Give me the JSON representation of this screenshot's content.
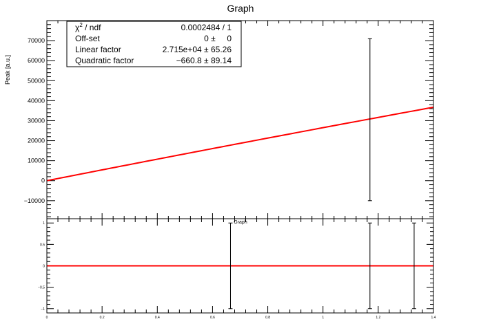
{
  "colors": {
    "fit": "#ff0000",
    "axes": "#000000",
    "background": "#ffffff"
  },
  "main": {
    "title": "Graph",
    "ylabel": "Peak [a.u.]",
    "xlim": [
      0,
      1.4
    ],
    "ylim": [
      -19000,
      80000
    ],
    "y_ticks": [
      {
        "value": -10000,
        "label": "−10000"
      },
      {
        "value": 0,
        "label": "0"
      },
      {
        "value": 10000,
        "label": "10000"
      },
      {
        "value": 20000,
        "label": "20000"
      },
      {
        "value": 30000,
        "label": "30000"
      },
      {
        "value": 40000,
        "label": "40000"
      },
      {
        "value": 50000,
        "label": "50000"
      },
      {
        "value": 60000,
        "label": "60000"
      },
      {
        "value": 70000,
        "label": "70000"
      }
    ]
  },
  "stats": {
    "rows": [
      {
        "label_base": "χ",
        "label_sup": "2",
        "label_rest": " / ndf",
        "value": "0.0002484 / 1"
      },
      {
        "label_base": "Off-set",
        "label_sup": "",
        "label_rest": "",
        "value": "0 ±     0"
      },
      {
        "label_base": "Linear factor",
        "label_sup": "",
        "label_rest": "",
        "value": "2.715e+04 ± 65.26"
      },
      {
        "label_base": "Quadratic factor",
        "label_sup": "",
        "label_rest": "",
        "value": "−660.8 ± 89.14"
      }
    ]
  },
  "residual": {
    "title": "Graph",
    "xlim": [
      0,
      1.4
    ],
    "ylim": [
      -1.1,
      1.1
    ],
    "y_ticks": [
      {
        "value": -1,
        "label": "−1"
      },
      {
        "value": -0.5,
        "label": "−0.5"
      },
      {
        "value": 0,
        "label": "0"
      },
      {
        "value": 0.5,
        "label": "0.5"
      },
      {
        "value": 1,
        "label": "1"
      }
    ],
    "x_ticks": [
      {
        "value": 0,
        "label": "0"
      },
      {
        "value": 0.2,
        "label": "0.2"
      },
      {
        "value": 0.4,
        "label": "0.4"
      },
      {
        "value": 0.6,
        "label": "0.6"
      },
      {
        "value": 0.8,
        "label": "0.8"
      },
      {
        "value": 1,
        "label": "1"
      },
      {
        "value": 1.2,
        "label": "1.2"
      },
      {
        "value": 1.4,
        "label": "1.4"
      }
    ]
  },
  "chart_data": [
    {
      "type": "line",
      "title": "Graph",
      "xlabel": "",
      "ylabel": "Peak [a.u.]",
      "xlim": [
        0,
        1.4
      ],
      "ylim": [
        -19000,
        80000
      ],
      "grid": false,
      "fit": {
        "offset": 0,
        "linear": 27150,
        "quadratic": -660.8
      },
      "points": [
        {
          "x": 1.17,
          "y": 30500,
          "yerr": 40500
        }
      ]
    },
    {
      "type": "scatter",
      "title": "Graph",
      "xlabel": "",
      "ylabel": "",
      "xlim": [
        0,
        1.4
      ],
      "ylim": [
        -1.1,
        1.1
      ],
      "grid": false,
      "zero_line": 0,
      "points": [
        {
          "x": 0.665,
          "y": 0,
          "yerr": 1
        },
        {
          "x": 1.17,
          "y": 0,
          "yerr": 1
        },
        {
          "x": 1.33,
          "y": 0,
          "yerr": 1
        }
      ]
    }
  ]
}
